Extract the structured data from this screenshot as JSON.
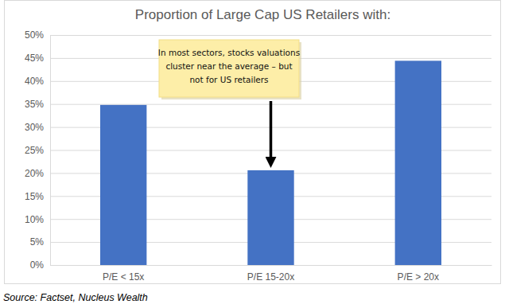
{
  "chart_data": {
    "type": "bar",
    "title": "Proportion of Large Cap US Retailers with:",
    "categories": [
      "P/E < 15x",
      "P/E 15-20x",
      "P/E > 20x"
    ],
    "values": [
      34.8,
      20.6,
      44.4
    ],
    "color": "#4472c4",
    "ylim": [
      0,
      50
    ],
    "yticks": [
      {
        "value": 0,
        "label": "0%"
      },
      {
        "value": 5,
        "label": "5%"
      },
      {
        "value": 10,
        "label": "10%"
      },
      {
        "value": 15,
        "label": "15%"
      },
      {
        "value": 20,
        "label": "20%"
      },
      {
        "value": 25,
        "label": "25%"
      },
      {
        "value": 30,
        "label": "30%"
      },
      {
        "value": 35,
        "label": "35%"
      },
      {
        "value": 40,
        "label": "40%"
      },
      {
        "value": 45,
        "label": "45%"
      },
      {
        "value": 50,
        "label": "50%"
      }
    ],
    "grid": true,
    "annotation": [
      "In most sectors, stocks valuations",
      "cluster near the average – but",
      "not for US retailers"
    ],
    "source": "Source: Factset, Nucleus Wealth"
  }
}
